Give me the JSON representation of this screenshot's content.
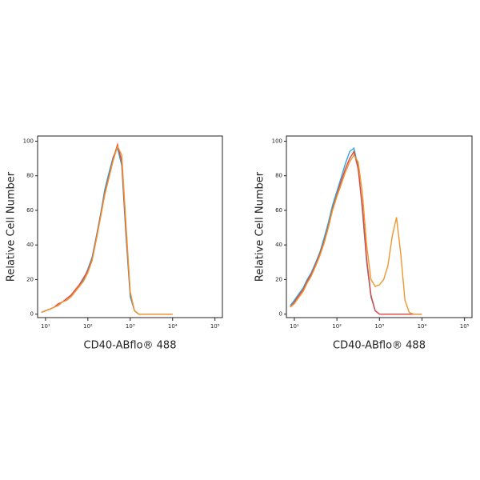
{
  "chart_data": [
    {
      "type": "line",
      "x_label": "CD40-ABflo® 488",
      "y_label": "Relative Cell Number",
      "xscale": "log",
      "x": [
        8,
        10,
        13,
        16,
        20,
        25,
        32,
        40,
        50,
        63,
        79,
        100,
        126,
        158,
        200,
        251,
        316,
        398,
        501,
        631,
        794,
        1000,
        1259,
        1585,
        2000,
        2512,
        3162,
        3981,
        5012,
        6310,
        10000
      ],
      "xlim": [
        6.5,
        150000
      ],
      "xticks": [
        {
          "value": 10,
          "label": "10¹"
        },
        {
          "value": 100,
          "label": "10²"
        },
        {
          "value": 1000,
          "label": "10³"
        },
        {
          "value": 10000,
          "label": "10⁴"
        },
        {
          "value": 100000,
          "label": "10⁵"
        }
      ],
      "ylim": [
        -2,
        103
      ],
      "yticks": [
        0,
        20,
        40,
        60,
        80,
        100
      ],
      "series": [
        {
          "color": "#27a9e1",
          "values": [
            1,
            2,
            3,
            4,
            5,
            7,
            9,
            11,
            13,
            16,
            20,
            26,
            33,
            45,
            58,
            72,
            82,
            91,
            96,
            86,
            45,
            10,
            2,
            0,
            0,
            0,
            0,
            0,
            0,
            0,
            0
          ]
        },
        {
          "color": "#e8453c",
          "values": [
            1,
            2,
            3,
            4,
            6,
            7,
            9,
            11,
            14,
            17,
            21,
            25,
            32,
            44,
            57,
            70,
            80,
            90,
            98,
            88,
            48,
            12,
            2,
            0,
            0,
            0,
            0,
            0,
            0,
            0,
            0
          ]
        },
        {
          "color": "#f0962e",
          "values": [
            1,
            2,
            3,
            4,
            5,
            7,
            8,
            10,
            13,
            16,
            19,
            24,
            31,
            43,
            56,
            69,
            79,
            89,
            97,
            92,
            52,
            13,
            2,
            0,
            0,
            0,
            0,
            0,
            0,
            0,
            0
          ]
        }
      ]
    },
    {
      "type": "line",
      "x_label": "CD40-ABflo® 488",
      "y_label": "Relative Cell Number",
      "xscale": "log",
      "x": [
        8,
        10,
        13,
        16,
        20,
        25,
        32,
        40,
        50,
        63,
        79,
        100,
        126,
        158,
        200,
        251,
        316,
        398,
        501,
        631,
        794,
        1000,
        1259,
        1585,
        2000,
        2512,
        3162,
        3981,
        5012,
        6310,
        10000
      ],
      "xlim": [
        6.5,
        150000
      ],
      "xticks": [
        {
          "value": 10,
          "label": "10¹"
        },
        {
          "value": 100,
          "label": "10²"
        },
        {
          "value": 1000,
          "label": "10³"
        },
        {
          "value": 10000,
          "label": "10⁴"
        },
        {
          "value": 100000,
          "label": "10⁵"
        }
      ],
      "ylim": [
        -2,
        103
      ],
      "yticks": [
        0,
        20,
        40,
        60,
        80,
        100
      ],
      "series": [
        {
          "color": "#27a9e1",
          "values": [
            5,
            8,
            12,
            15,
            20,
            24,
            30,
            36,
            44,
            53,
            63,
            71,
            79,
            87,
            94,
            96,
            85,
            60,
            30,
            10,
            2,
            0,
            0,
            0,
            0,
            0,
            0,
            0,
            0,
            0,
            0
          ]
        },
        {
          "color": "#e8453c",
          "values": [
            4,
            7,
            11,
            14,
            19,
            23,
            29,
            35,
            42,
            51,
            61,
            69,
            77,
            84,
            90,
            94,
            84,
            62,
            32,
            11,
            2,
            0,
            0,
            0,
            0,
            0,
            0,
            0,
            0,
            0,
            0
          ]
        },
        {
          "color": "#f0962e",
          "values": [
            4,
            6,
            10,
            13,
            18,
            22,
            28,
            34,
            41,
            50,
            60,
            68,
            75,
            82,
            88,
            92,
            88,
            70,
            40,
            20,
            16,
            17,
            20,
            28,
            45,
            56,
            35,
            8,
            1,
            0,
            0
          ]
        }
      ]
    }
  ]
}
